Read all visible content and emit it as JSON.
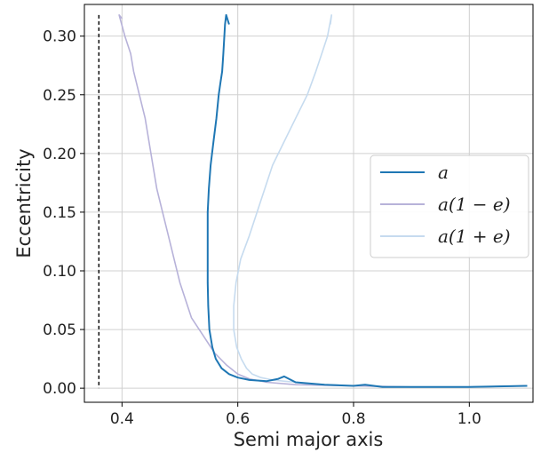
{
  "chart_data": {
    "type": "line",
    "xlabel": "Semi major axis",
    "ylabel": "Eccentricity",
    "xlim": [
      0.335,
      1.11
    ],
    "ylim": [
      -0.012,
      0.327
    ],
    "grid": true,
    "legend": "center-right",
    "x_ticks": [
      0.4,
      0.6,
      0.8,
      1.0
    ],
    "x_tick_labels": [
      "0.4",
      "0.6",
      "0.8",
      "1.0"
    ],
    "y_ticks": [
      0.0,
      0.05,
      0.1,
      0.15,
      0.2,
      0.25,
      0.3
    ],
    "y_tick_labels": [
      "0.00",
      "0.05",
      "0.10",
      "0.15",
      "0.20",
      "0.25",
      "0.30"
    ],
    "reference_line": {
      "x": 0.36,
      "style": "dashed",
      "color": "#000000"
    },
    "series": [
      {
        "name": "a",
        "color": "#1f77b4",
        "points": [
          [
            0.585,
            0.31
          ],
          [
            0.58,
            0.318
          ],
          [
            0.578,
            0.31
          ],
          [
            0.575,
            0.285
          ],
          [
            0.573,
            0.27
          ],
          [
            0.57,
            0.26
          ],
          [
            0.567,
            0.25
          ],
          [
            0.563,
            0.23
          ],
          [
            0.558,
            0.21
          ],
          [
            0.553,
            0.19
          ],
          [
            0.55,
            0.17
          ],
          [
            0.548,
            0.15
          ],
          [
            0.548,
            0.13
          ],
          [
            0.548,
            0.11
          ],
          [
            0.548,
            0.09
          ],
          [
            0.549,
            0.07
          ],
          [
            0.551,
            0.05
          ],
          [
            0.556,
            0.035
          ],
          [
            0.562,
            0.025
          ],
          [
            0.572,
            0.017
          ],
          [
            0.585,
            0.012
          ],
          [
            0.6,
            0.009
          ],
          [
            0.62,
            0.007
          ],
          [
            0.65,
            0.006
          ],
          [
            0.67,
            0.008
          ],
          [
            0.68,
            0.01
          ],
          [
            0.7,
            0.005
          ],
          [
            0.75,
            0.003
          ],
          [
            0.8,
            0.002
          ],
          [
            0.82,
            0.003
          ],
          [
            0.85,
            0.001
          ],
          [
            0.9,
            0.001
          ],
          [
            1.0,
            0.001
          ],
          [
            1.1,
            0.002
          ]
        ]
      },
      {
        "name": "a(1 − e)",
        "color": "#b7b2d9",
        "points": [
          [
            0.4,
            0.315
          ],
          [
            0.395,
            0.318
          ],
          [
            0.405,
            0.3
          ],
          [
            0.415,
            0.285
          ],
          [
            0.42,
            0.27
          ],
          [
            0.43,
            0.25
          ],
          [
            0.44,
            0.23
          ],
          [
            0.45,
            0.2
          ],
          [
            0.46,
            0.17
          ],
          [
            0.47,
            0.15
          ],
          [
            0.48,
            0.13
          ],
          [
            0.49,
            0.11
          ],
          [
            0.5,
            0.09
          ],
          [
            0.51,
            0.075
          ],
          [
            0.52,
            0.06
          ],
          [
            0.54,
            0.045
          ],
          [
            0.56,
            0.03
          ],
          [
            0.58,
            0.02
          ],
          [
            0.6,
            0.012
          ],
          [
            0.62,
            0.008
          ],
          [
            0.65,
            0.005
          ],
          [
            0.7,
            0.003
          ],
          [
            0.8,
            0.002
          ],
          [
            0.9,
            0.001
          ],
          [
            1.0,
            0.001
          ],
          [
            1.1,
            0.002
          ]
        ]
      },
      {
        "name": "a(1 + e)",
        "color": "#c6dbef",
        "points": [
          [
            0.76,
            0.31
          ],
          [
            0.762,
            0.318
          ],
          [
            0.755,
            0.3
          ],
          [
            0.745,
            0.285
          ],
          [
            0.735,
            0.27
          ],
          [
            0.72,
            0.25
          ],
          [
            0.7,
            0.23
          ],
          [
            0.68,
            0.21
          ],
          [
            0.66,
            0.19
          ],
          [
            0.64,
            0.16
          ],
          [
            0.62,
            0.13
          ],
          [
            0.605,
            0.11
          ],
          [
            0.597,
            0.09
          ],
          [
            0.593,
            0.07
          ],
          [
            0.593,
            0.05
          ],
          [
            0.598,
            0.035
          ],
          [
            0.606,
            0.025
          ],
          [
            0.615,
            0.017
          ],
          [
            0.625,
            0.012
          ],
          [
            0.64,
            0.009
          ],
          [
            0.66,
            0.007
          ],
          [
            0.7,
            0.005
          ],
          [
            0.75,
            0.003
          ],
          [
            0.8,
            0.002
          ],
          [
            0.9,
            0.001
          ],
          [
            1.0,
            0.001
          ],
          [
            1.1,
            0.002
          ]
        ]
      }
    ]
  }
}
